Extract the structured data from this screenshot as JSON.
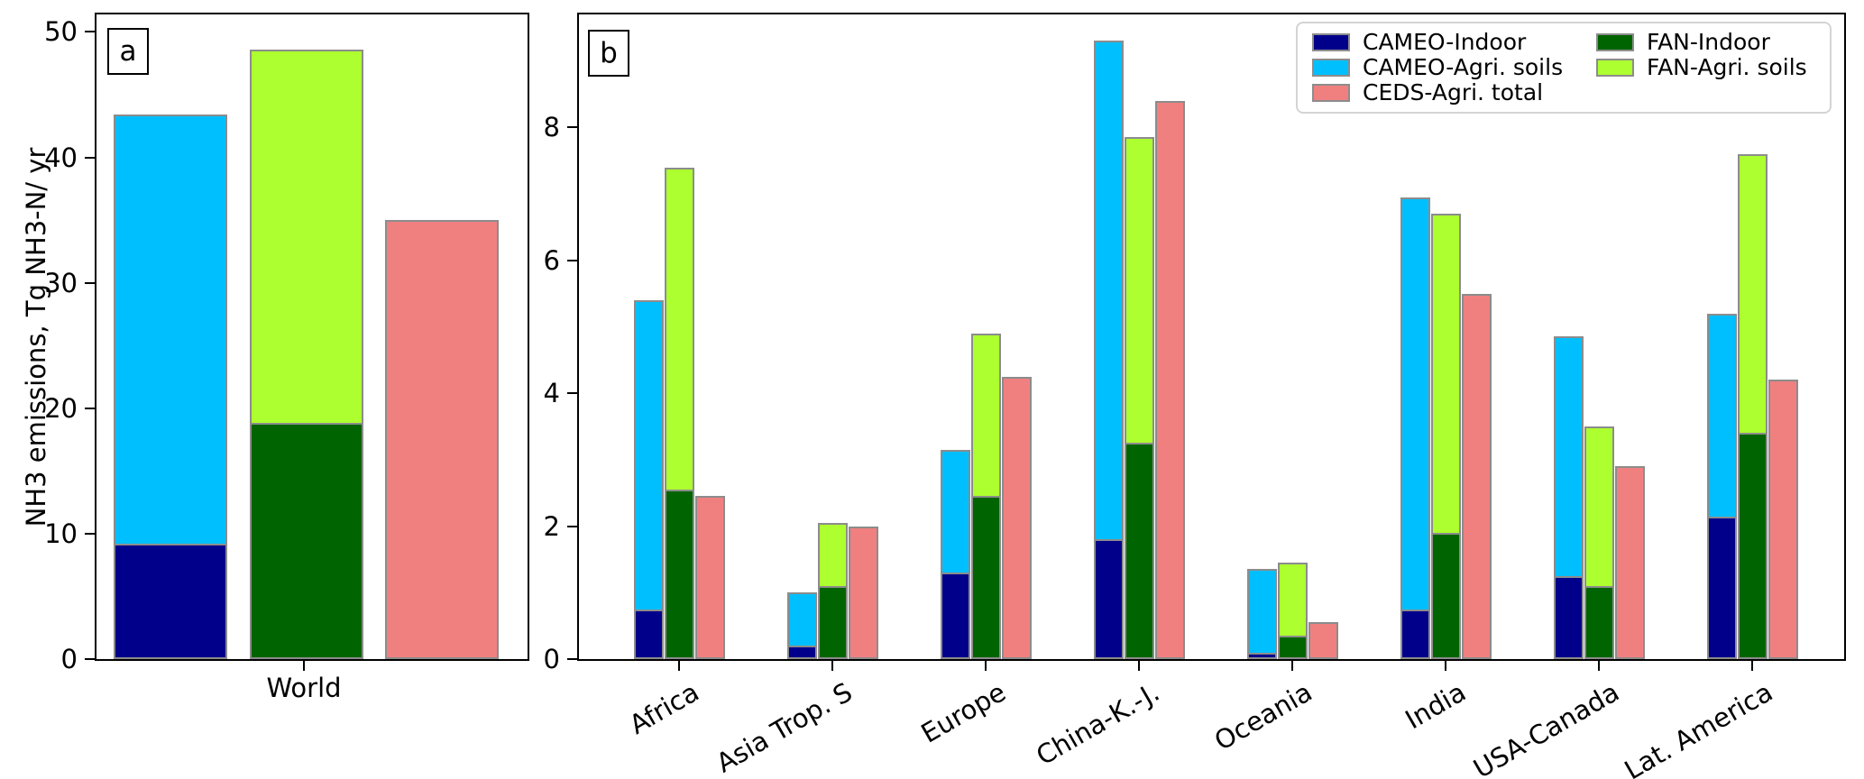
{
  "figure": {
    "ylabel": "NH3 emissions, Tg NH3-N/ yr",
    "panel_a_letter": "a",
    "panel_b_letter": "b"
  },
  "chart_data": {
    "type": "bar",
    "title": "",
    "ylabel": "NH3 emissions, Tg NH3-N/ yr",
    "legend_position": "upper right of panel b",
    "grid": false,
    "stacking": "cameo_soils is stacked on cameo_indoor (stack top = cameo_stack_top); fan_soils is stacked on fan_indoor (stack top = fan_stack_top); ceds_total is a single unstacked bar",
    "series": [
      {
        "key": "cameo_indoor",
        "name": "CAMEO-Indoor",
        "color": "#00008B"
      },
      {
        "key": "cameo_soils",
        "name": "CAMEO-Agri. soils",
        "color": "#00BFFF"
      },
      {
        "key": "ceds_total",
        "name": "CEDS-Agri. total",
        "color": "#F08080"
      },
      {
        "key": "fan_indoor",
        "name": "FAN-Indoor",
        "color": "#006400"
      },
      {
        "key": "fan_soils",
        "name": "FAN-Agri. soils",
        "color": "#ADFF2F"
      }
    ],
    "panels": [
      {
        "label": "a",
        "yticks": [
          0,
          10,
          20,
          30,
          40,
          50
        ],
        "ylim": [
          0,
          51.4
        ],
        "values": [
          {
            "category": "World",
            "cameo_indoor": 9.2,
            "cameo_stack_top": 43.4,
            "fan_indoor": 18.8,
            "fan_stack_top": 48.6,
            "ceds_total": 35.0
          }
        ]
      },
      {
        "label": "b",
        "yticks": [
          0,
          2,
          4,
          6,
          8
        ],
        "ylim": [
          0,
          9.7
        ],
        "values": [
          {
            "category": "Africa",
            "cameo_indoor": 0.75,
            "cameo_stack_top": 5.4,
            "fan_indoor": 2.55,
            "fan_stack_top": 7.4,
            "ceds_total": 2.45
          },
          {
            "category": "Asia Trop. S",
            "cameo_indoor": 0.2,
            "cameo_stack_top": 1.0,
            "fan_indoor": 1.1,
            "fan_stack_top": 2.05,
            "ceds_total": 2.0
          },
          {
            "category": "Europe",
            "cameo_indoor": 1.3,
            "cameo_stack_top": 3.15,
            "fan_indoor": 2.45,
            "fan_stack_top": 4.9,
            "ceds_total": 4.25
          },
          {
            "category": "China-K.-J.",
            "cameo_indoor": 1.8,
            "cameo_stack_top": 9.3,
            "fan_indoor": 3.25,
            "fan_stack_top": 7.85,
            "ceds_total": 8.4
          },
          {
            "category": "Oceania",
            "cameo_indoor": 0.1,
            "cameo_stack_top": 1.35,
            "fan_indoor": 0.35,
            "fan_stack_top": 1.45,
            "ceds_total": 0.55
          },
          {
            "category": "India",
            "cameo_indoor": 0.75,
            "cameo_stack_top": 6.95,
            "fan_indoor": 1.9,
            "fan_stack_top": 6.7,
            "ceds_total": 5.5
          },
          {
            "category": "USA-Canada",
            "cameo_indoor": 1.25,
            "cameo_stack_top": 4.85,
            "fan_indoor": 1.1,
            "fan_stack_top": 3.5,
            "ceds_total": 2.9
          },
          {
            "category": "Lat. America",
            "cameo_indoor": 2.15,
            "cameo_stack_top": 5.2,
            "fan_indoor": 3.4,
            "fan_stack_top": 7.6,
            "ceds_total": 4.2
          }
        ]
      }
    ]
  },
  "legend": {
    "column1": [
      "CAMEO-Indoor",
      "CAMEO-Agri. soils",
      "CEDS-Agri. total"
    ],
    "column2": [
      "FAN-Indoor",
      "FAN-Agri. soils"
    ]
  }
}
